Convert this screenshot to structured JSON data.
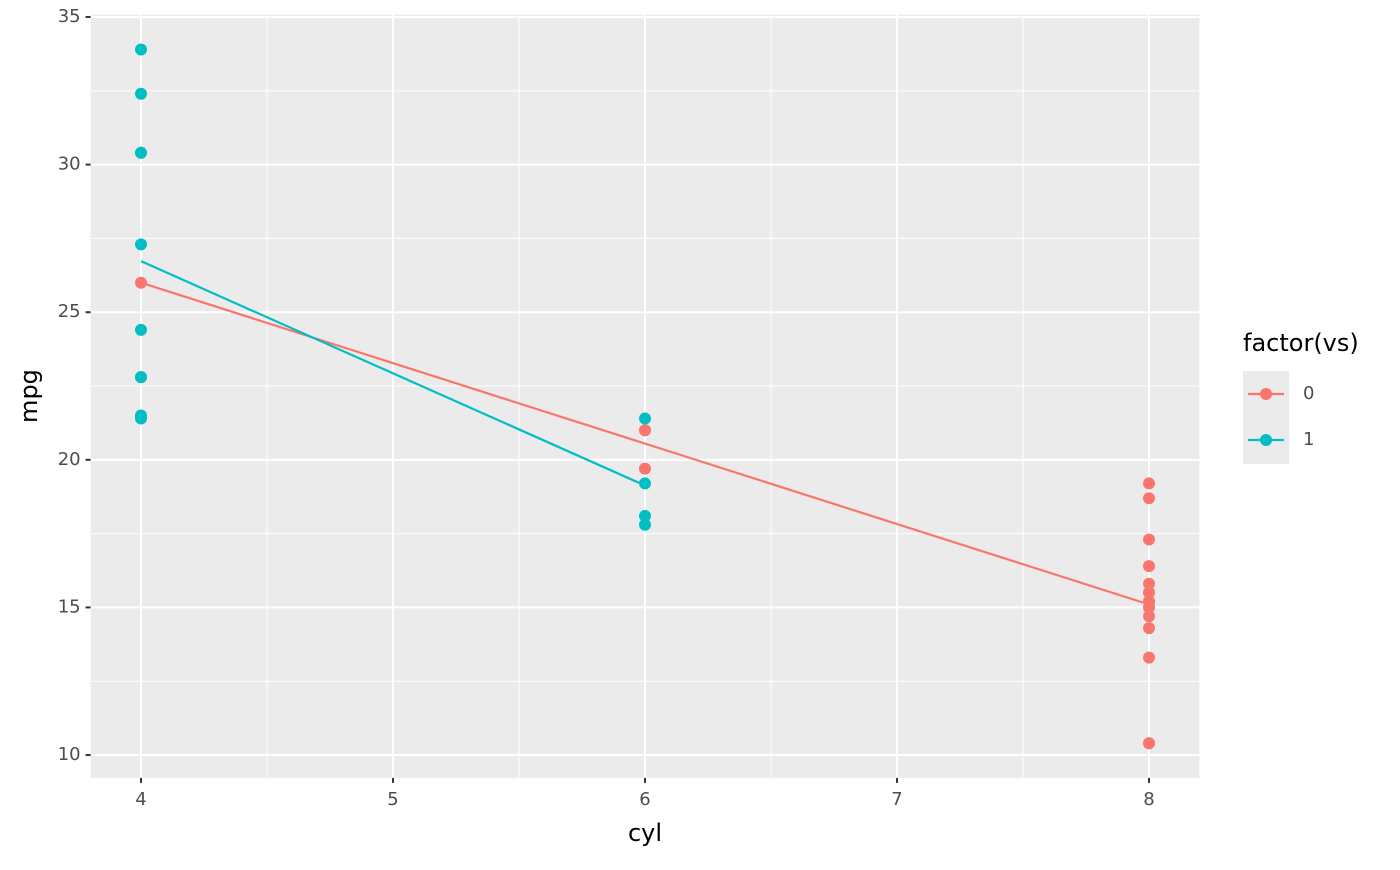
{
  "chart_data": {
    "type": "scatter",
    "x_label": "cyl",
    "y_label": "mpg",
    "legend_title": "factor(vs)",
    "legend_position": "right",
    "xlim": [
      3.8,
      8.2
    ],
    "ylim": [
      9.225,
      35.075
    ],
    "xticks": [
      4,
      5,
      6,
      7,
      8
    ],
    "yticks": [
      10,
      15,
      20,
      25,
      30,
      35
    ],
    "grid": true,
    "series": [
      {
        "name": "0",
        "color": "#F8766D",
        "x": [
          6,
          6,
          8,
          8,
          8,
          8,
          8,
          8,
          8,
          8,
          8,
          8,
          8,
          8,
          4,
          8,
          6,
          8
        ],
        "values": [
          21,
          21,
          18.7,
          14.3,
          16.4,
          17.3,
          15.2,
          10.4,
          10.4,
          14.7,
          15.5,
          15.2,
          13.3,
          19.2,
          26,
          15.8,
          19.7,
          15
        ],
        "fit": {
          "x": [
            4,
            8
          ],
          "values": [
            26.0,
            15.1
          ]
        }
      },
      {
        "name": "1",
        "color": "#00BFC4",
        "x": [
          4,
          6,
          6,
          4,
          4,
          6,
          6,
          4,
          4,
          4,
          4,
          4,
          4,
          4
        ],
        "values": [
          22.8,
          21.4,
          18.1,
          24.4,
          22.8,
          19.2,
          17.8,
          32.4,
          30.4,
          33.9,
          21.5,
          27.3,
          30.4,
          21.4
        ],
        "fit": {
          "x": [
            4,
            6
          ],
          "values": [
            26.73,
            19.13
          ]
        }
      }
    ]
  }
}
